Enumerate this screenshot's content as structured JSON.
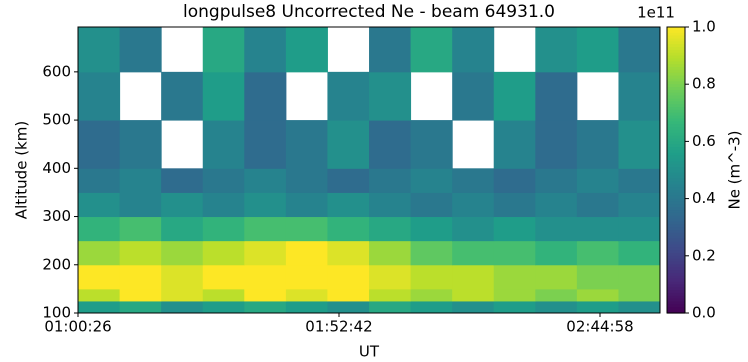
{
  "chart_data": {
    "type": "heatmap",
    "title": "longpulse8 Uncorrected Ne - beam 64931.0",
    "x_label": "UT",
    "y_label": "Altitude (km)",
    "colorbar_label": "Ne (m^-3)",
    "colorbar_offset": "1e11",
    "colormap": "viridis",
    "x_edges": [
      3626,
      4126,
      4625,
      5125,
      5624,
      6124,
      6623,
      7123,
      7622,
      8122,
      8621,
      9121,
      9620,
      10120,
      10619
    ],
    "y_edges": [
      100,
      125,
      150,
      200,
      250,
      300,
      350,
      400,
      500,
      600,
      693
    ],
    "z": [
      [
        0.55,
        0.6,
        0.5,
        0.55,
        0.6,
        0.55,
        0.5,
        0.6,
        0.55,
        0.5,
        0.55,
        0.5,
        0.55,
        0.5
      ],
      [
        0.9,
        1.0,
        0.95,
        0.9,
        1.0,
        0.95,
        1.0,
        0.9,
        0.85,
        0.9,
        0.85,
        0.8,
        0.85,
        0.8
      ],
      [
        1.0,
        1.0,
        0.95,
        1.0,
        1.0,
        1.0,
        1.0,
        0.95,
        0.9,
        0.9,
        0.85,
        0.85,
        0.8,
        0.8
      ],
      [
        0.85,
        0.9,
        0.85,
        0.9,
        0.95,
        1.0,
        0.95,
        0.85,
        0.75,
        0.7,
        0.7,
        0.65,
        0.7,
        0.65
      ],
      [
        0.65,
        0.7,
        0.6,
        0.65,
        0.7,
        0.7,
        0.65,
        0.6,
        0.55,
        0.5,
        0.55,
        0.5,
        0.5,
        0.5
      ],
      [
        0.5,
        0.45,
        0.5,
        0.45,
        0.5,
        0.45,
        0.5,
        0.45,
        0.4,
        0.45,
        0.4,
        0.45,
        0.4,
        0.45
      ],
      [
        0.4,
        0.45,
        0.35,
        0.4,
        0.45,
        0.4,
        0.35,
        0.4,
        0.45,
        0.4,
        0.35,
        0.4,
        0.45,
        0.4
      ],
      [
        0.35,
        0.4,
        null,
        0.45,
        0.35,
        0.4,
        0.5,
        0.35,
        0.4,
        null,
        0.45,
        0.35,
        0.4,
        0.5
      ],
      [
        0.45,
        null,
        0.4,
        0.55,
        0.35,
        null,
        0.45,
        0.5,
        null,
        0.4,
        0.55,
        0.35,
        null,
        0.45
      ],
      [
        0.5,
        0.4,
        null,
        0.6,
        0.45,
        0.55,
        null,
        0.4,
        0.6,
        0.45,
        null,
        0.5,
        0.55,
        0.4
      ]
    ],
    "xlim": [
      3626,
      10619
    ],
    "ylim": [
      100,
      693
    ],
    "zlim": [
      0,
      1
    ],
    "xticks": [
      {
        "value": 3626,
        "label": "01:00:26"
      },
      {
        "value": 6762,
        "label": "01:52:42"
      },
      {
        "value": 9898,
        "label": "02:44:58"
      }
    ],
    "yticks": [
      100,
      200,
      300,
      400,
      500,
      600
    ],
    "zticks": [
      {
        "value": 0,
        "label": "0.0"
      },
      0.2,
      0.4,
      0.6,
      0.8,
      {
        "value": 1,
        "label": "1.0"
      }
    ]
  }
}
